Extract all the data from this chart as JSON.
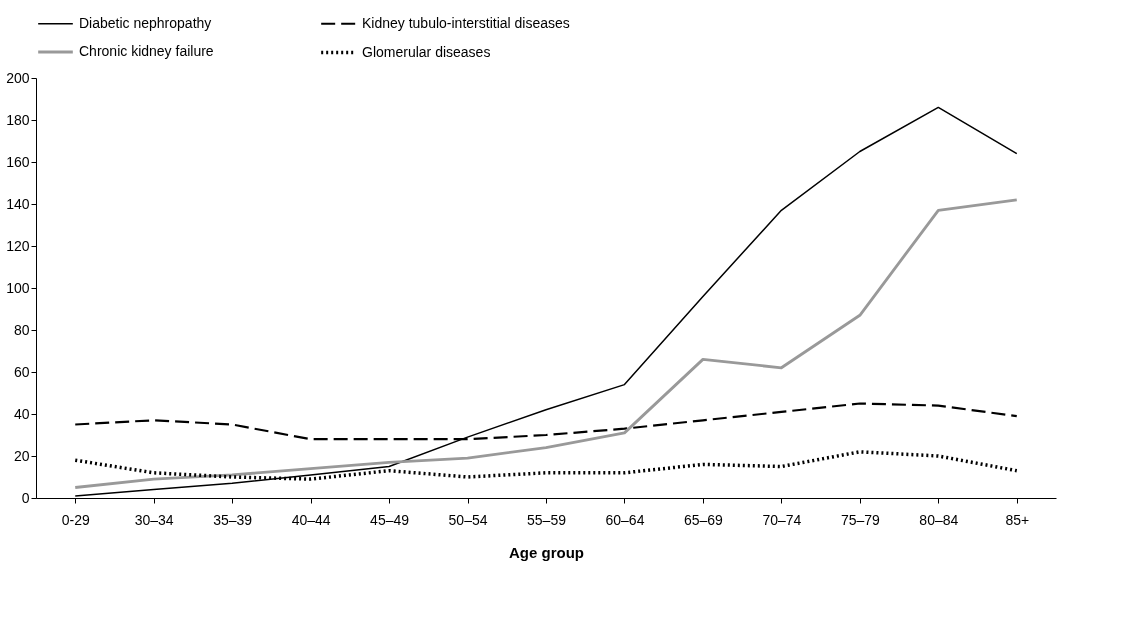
{
  "chart_data": {
    "type": "line",
    "xlabel": "Age group",
    "categories": [
      "0-29",
      "30–34",
      "35–39",
      "40–44",
      "45–49",
      "50–54",
      "55–59",
      "60–64",
      "65–69",
      "70–74",
      "75–79",
      "80–84",
      "85+"
    ],
    "series": [
      {
        "name": "Diabetic nephropathy",
        "color": "#000000",
        "line_style": "solid",
        "values": [
          1,
          4,
          7,
          11,
          15,
          29,
          42,
          54,
          96,
          137,
          165,
          186,
          164
        ]
      },
      {
        "name": "Kidney tubulo-interstitial diseases",
        "color": "#000000",
        "line_style": "dashed",
        "values": [
          35,
          37,
          35,
          28,
          28,
          28,
          30,
          33,
          37,
          41,
          45,
          44,
          39
        ]
      },
      {
        "name": "Chronic kidney failure",
        "color": "#999999",
        "line_style": "solid",
        "values": [
          5,
          9,
          11,
          14,
          17,
          19,
          24,
          31,
          66,
          62,
          87,
          137,
          142
        ]
      },
      {
        "name": "Glomerular diseases",
        "color": "#000000",
        "line_style": "dotted",
        "values": [
          18,
          12,
          10,
          9,
          13,
          10,
          12,
          12,
          16,
          15,
          22,
          20,
          13
        ]
      }
    ],
    "ylim": [
      0,
      200
    ],
    "yticks": [
      0,
      20,
      40,
      60,
      80,
      100,
      120,
      140,
      160,
      180,
      200
    ],
    "grid": false,
    "legend": "top",
    "marker": "none"
  }
}
